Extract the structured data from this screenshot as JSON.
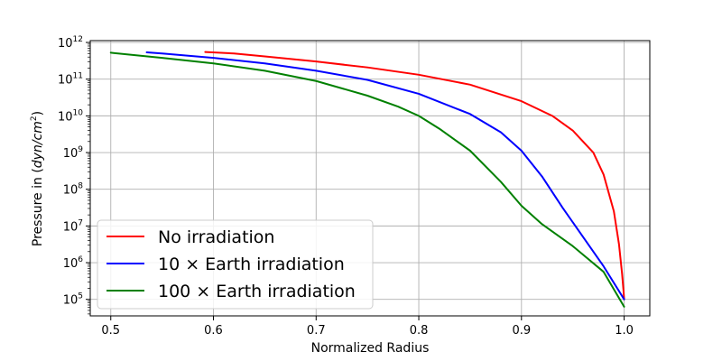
{
  "chart_data": {
    "type": "line",
    "xlabel": "Normalized Radius",
    "ylabel_prefix": "Pressure in (",
    "ylabel_unit": "dyn/cm",
    "ylabel_exp": "2",
    "ylabel_suffix": ")",
    "xlim": [
      0.48,
      1.025
    ],
    "ylim_log10": [
      4.55,
      12.05
    ],
    "y_scale": "log",
    "grid": true,
    "legend_position": "lower-left",
    "x_ticks": [
      0.5,
      0.6,
      0.7,
      0.8,
      0.9,
      1.0
    ],
    "x_tick_labels": [
      "0.5",
      "0.6",
      "0.7",
      "0.8",
      "0.9",
      "1.0"
    ],
    "y_tick_exponents": [
      5,
      6,
      7,
      8,
      9,
      10,
      11,
      12
    ],
    "y_tick_base": "10",
    "y_tick_exp_labels": [
      "5",
      "6",
      "7",
      "8",
      "9",
      "10",
      "11",
      "12"
    ],
    "series": [
      {
        "name": "No irradiation",
        "color": "#ff0000",
        "x": [
          0.592,
          0.62,
          0.65,
          0.7,
          0.75,
          0.8,
          0.85,
          0.9,
          0.93,
          0.95,
          0.97,
          0.98,
          0.99,
          0.995,
          0.998,
          0.9995,
          1.0
        ],
        "y_log10": [
          11.74,
          11.7,
          11.62,
          11.48,
          11.32,
          11.12,
          10.85,
          10.4,
          10.0,
          9.6,
          9.0,
          8.4,
          7.4,
          6.5,
          5.7,
          5.2,
          5.0
        ]
      },
      {
        "name": "10 × Earth irradiation",
        "color": "#0000ff",
        "x": [
          0.535,
          0.55,
          0.6,
          0.65,
          0.7,
          0.75,
          0.8,
          0.85,
          0.88,
          0.9,
          0.92,
          0.94,
          0.96,
          0.98,
          1.0
        ],
        "y_log10": [
          11.73,
          11.7,
          11.58,
          11.43,
          11.23,
          10.98,
          10.6,
          10.05,
          9.55,
          9.05,
          8.35,
          7.5,
          6.7,
          5.9,
          5.0
        ]
      },
      {
        "name": "100 × Earth irradiation",
        "color": "#008000",
        "x": [
          0.5,
          0.55,
          0.6,
          0.65,
          0.7,
          0.75,
          0.78,
          0.8,
          0.82,
          0.85,
          0.88,
          0.9,
          0.92,
          0.95,
          0.98,
          1.0
        ],
        "y_log10": [
          11.72,
          11.58,
          11.43,
          11.23,
          10.95,
          10.55,
          10.25,
          10.0,
          9.65,
          9.05,
          8.2,
          7.55,
          7.05,
          6.45,
          5.75,
          4.8
        ]
      }
    ]
  }
}
